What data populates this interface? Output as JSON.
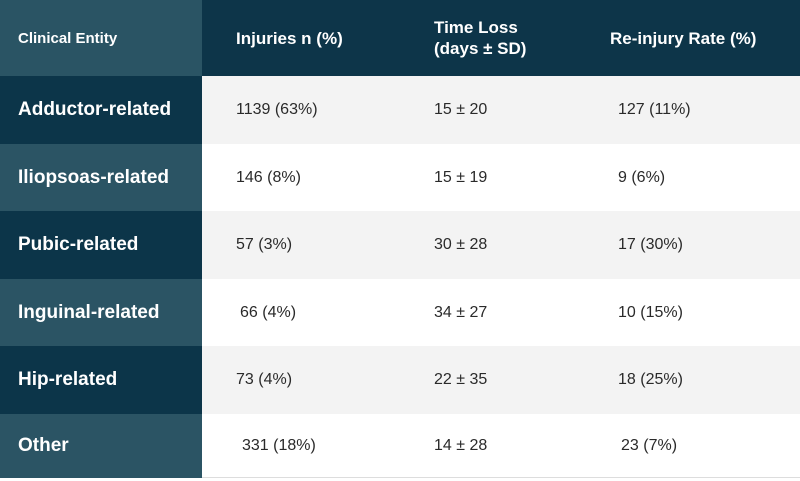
{
  "table": {
    "headers": {
      "entity": "Clinical Entity",
      "injuries": "Injuries n (%)",
      "time_loss": "Time Loss\n(days ± SD)",
      "reinjury": "Re-injury Rate (%)"
    },
    "rows": [
      {
        "entity": "Adductor-related",
        "injuries": "1139 (63%)",
        "time_loss": "15 ± 20",
        "reinjury": "127 (11%)"
      },
      {
        "entity": "Iliopsoas-related",
        "injuries": "146 (8%)",
        "time_loss": "15 ± 19",
        "reinjury": "9 (6%)"
      },
      {
        "entity": "Pubic-related",
        "injuries": "57 (3%)",
        "time_loss": "30 ± 28",
        "reinjury": "17 (30%)"
      },
      {
        "entity": "Inguinal-related",
        "injuries": "66 (4%)",
        "time_loss": "34 ± 27",
        "reinjury": "10 (15%)"
      },
      {
        "entity": "Hip-related",
        "injuries": "73 (4%)",
        "time_loss": "22 ± 35",
        "reinjury": "18 (25%)"
      },
      {
        "entity": "Other",
        "injuries": "331 (18%)",
        "time_loss": "14 ± 28",
        "reinjury": "23 (7%)"
      }
    ]
  },
  "colors": {
    "header_bg": "#0d3549",
    "stub_dark": "#0c3549",
    "stub_light": "#2b5464",
    "row_gray": "#f3f3f3",
    "row_white": "#ffffff"
  }
}
